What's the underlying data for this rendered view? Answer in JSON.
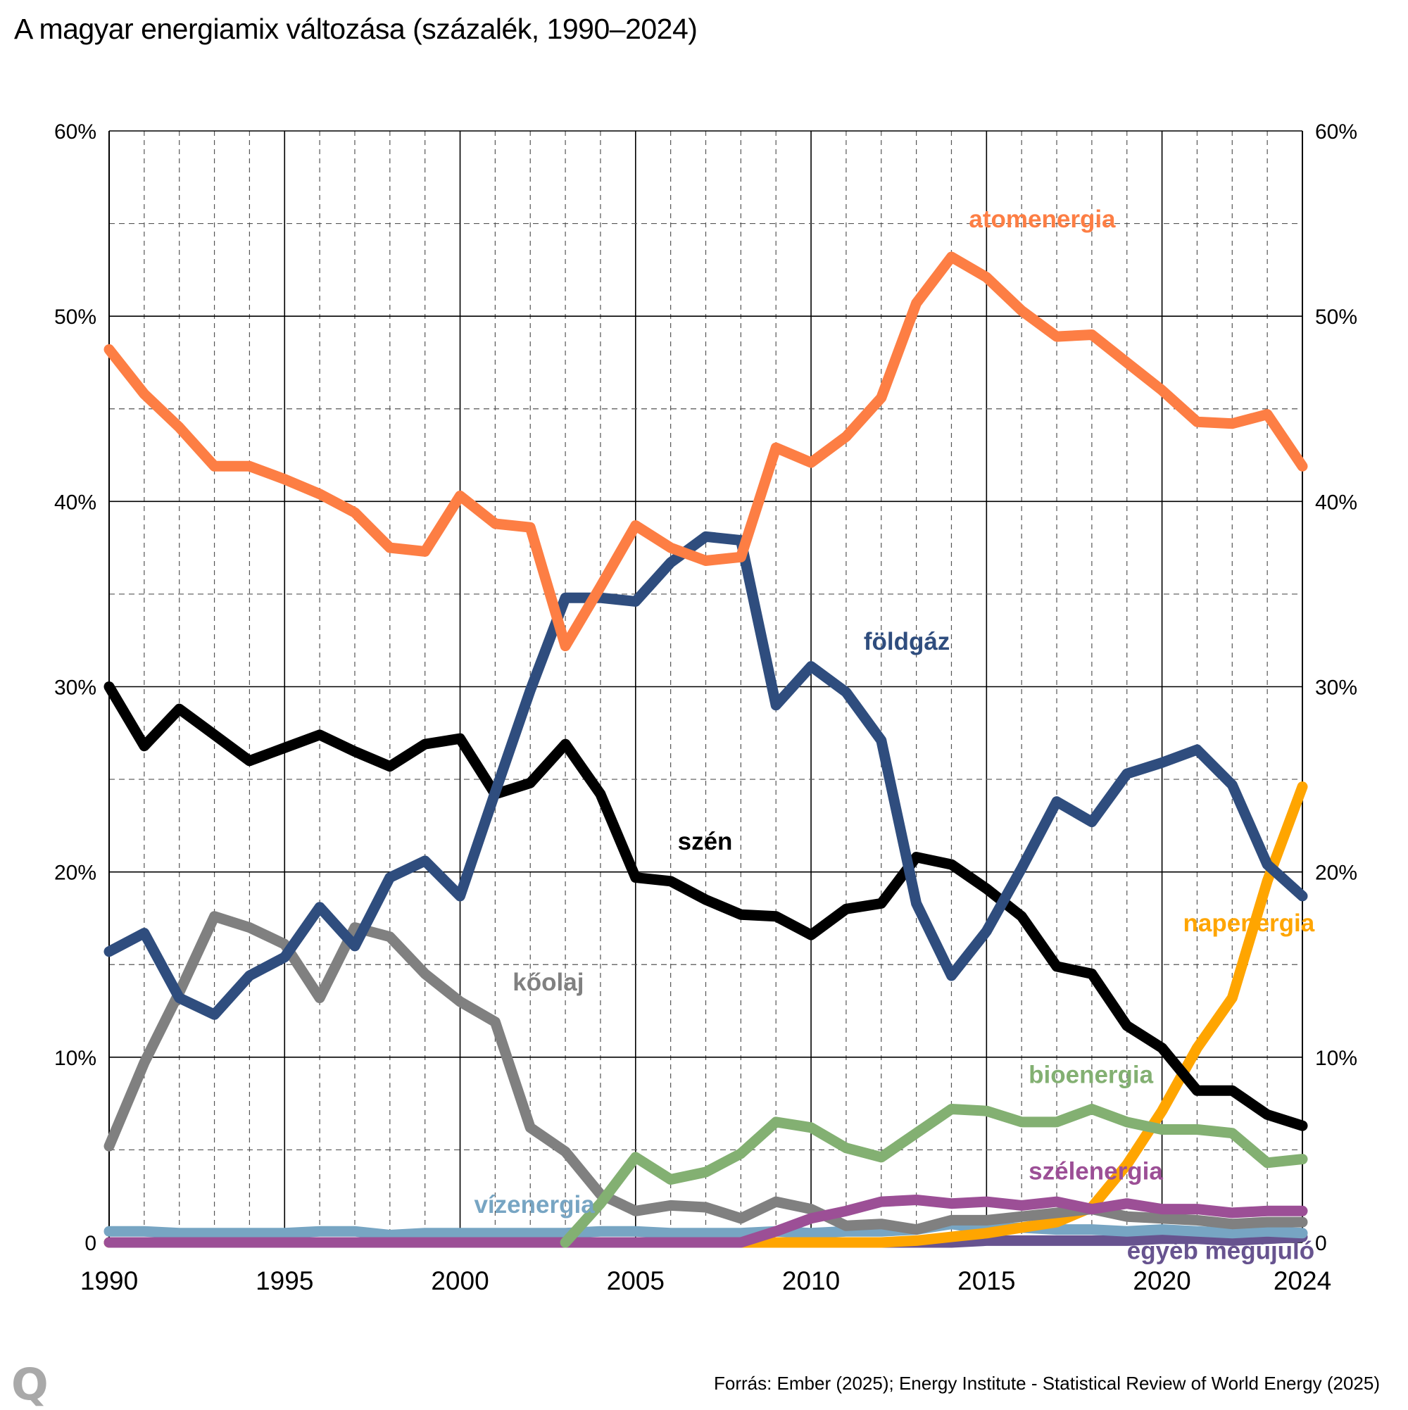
{
  "title": "A magyar energiamix változása (százalék, 1990–2024)",
  "source": "Forrás: Ember (2025); Energy Institute - Statistical Review of World Energy (2025)",
  "logo": "Q",
  "chart_data": {
    "type": "line",
    "title": "A magyar energiamix változása (százalék, 1990–2024)",
    "xlabel": "",
    "ylabel": "",
    "ylim": [
      0,
      60
    ],
    "xlim": [
      1990,
      2024
    ],
    "y_ticks": [
      0,
      10,
      20,
      30,
      40,
      50,
      60
    ],
    "y_tick_labels": [
      "0",
      "10%",
      "20%",
      "30%",
      "40%",
      "50%",
      "60%"
    ],
    "y_axis_sides": [
      "left",
      "right"
    ],
    "x_ticks": [
      1990,
      1995,
      2000,
      2005,
      2010,
      2015,
      2020,
      2024
    ],
    "x_tick_labels": [
      "1990",
      "1995",
      "2000",
      "2005",
      "2010",
      "2015",
      "2020",
      "2024"
    ],
    "grid": "major solid every 10%, minor dashed every 5% and every year",
    "legend": "inline labels",
    "x": [
      1990,
      1991,
      1992,
      1993,
      1994,
      1995,
      1996,
      1997,
      1998,
      1999,
      2000,
      2001,
      2002,
      2003,
      2004,
      2005,
      2006,
      2007,
      2008,
      2009,
      2010,
      2011,
      2012,
      2013,
      2014,
      2015,
      2016,
      2017,
      2018,
      2019,
      2020,
      2021,
      2022,
      2023,
      2024
    ],
    "series": [
      {
        "name": "egyéb megújuló",
        "color": "#67538f",
        "values": [
          0,
          0,
          0,
          0,
          0,
          0,
          0,
          0,
          0,
          0,
          0,
          0,
          0,
          0,
          0,
          0,
          0,
          0,
          0,
          0,
          0,
          0,
          0,
          0,
          0,
          0.1,
          0.1,
          0.1,
          0.1,
          0.1,
          0.2,
          0.2,
          0.1,
          0.2,
          0.3
        ]
      },
      {
        "name": "vízenergia",
        "color": "#77a5c3",
        "values": [
          0.6,
          0.6,
          0.5,
          0.5,
          0.5,
          0.5,
          0.6,
          0.6,
          0.4,
          0.5,
          0.5,
          0.5,
          0.5,
          0.5,
          0.6,
          0.6,
          0.5,
          0.5,
          0.5,
          0.6,
          0.5,
          0.6,
          0.6,
          0.7,
          1.0,
          0.7,
          0.8,
          0.7,
          0.7,
          0.6,
          0.7,
          0.6,
          0.5,
          0.6,
          0.5
        ]
      },
      {
        "name": "napenergia",
        "color": "#ffa500",
        "values": [
          0,
          0,
          0,
          0,
          0,
          0,
          0,
          0,
          0,
          0,
          0,
          0,
          0,
          0,
          0,
          0,
          0,
          0,
          0,
          0,
          0,
          0,
          0,
          0.1,
          0.3,
          0.5,
          0.8,
          1.1,
          1.9,
          4.2,
          7.1,
          10.5,
          13.2,
          19.5,
          24.6
        ]
      },
      {
        "name": "kőolaj",
        "color": "#808080",
        "values": [
          5.2,
          9.7,
          13.5,
          17.6,
          17.0,
          16.1,
          13.2,
          17.0,
          16.5,
          14.5,
          13.0,
          11.9,
          6.2,
          4.9,
          2.6,
          1.7,
          2.0,
          1.9,
          1.3,
          2.2,
          1.8,
          0.9,
          1.0,
          0.7,
          1.2,
          1.2,
          1.4,
          1.6,
          1.8,
          1.4,
          1.3,
          1.2,
          1.0,
          1.1,
          1.1
        ]
      },
      {
        "name": "szélenergia",
        "color": "#9c4f96",
        "values": [
          0,
          0,
          0,
          0,
          0,
          0,
          0,
          0,
          0,
          0,
          0,
          0,
          0,
          0,
          0,
          0,
          0,
          0,
          0,
          0.6,
          1.3,
          1.7,
          2.2,
          2.3,
          2.1,
          2.2,
          2.0,
          2.2,
          1.8,
          2.1,
          1.8,
          1.8,
          1.6,
          1.7,
          1.7
        ]
      },
      {
        "name": "bioenergia",
        "color": "#83b072",
        "values": [
          null,
          null,
          null,
          null,
          null,
          null,
          null,
          null,
          null,
          null,
          null,
          null,
          null,
          0,
          2.1,
          4.6,
          3.4,
          3.8,
          4.8,
          6.5,
          6.2,
          5.1,
          4.6,
          5.9,
          7.2,
          7.1,
          6.5,
          6.5,
          7.2,
          6.5,
          6.1,
          6.1,
          5.9,
          4.3,
          4.5
        ]
      },
      {
        "name": "szén",
        "color": "#000000",
        "values": [
          30.0,
          26.8,
          28.8,
          27.4,
          26.0,
          26.7,
          27.4,
          26.5,
          25.7,
          26.9,
          27.2,
          24.2,
          24.8,
          26.9,
          24.2,
          19.7,
          19.5,
          18.5,
          17.7,
          17.6,
          16.6,
          18.0,
          18.3,
          20.8,
          20.4,
          19.1,
          17.6,
          14.9,
          14.5,
          11.7,
          10.5,
          8.2,
          8.2,
          6.9,
          6.3
        ]
      },
      {
        "name": "földgáz",
        "color": "#2f4d7e",
        "values": [
          15.7,
          16.7,
          13.2,
          12.3,
          14.4,
          15.4,
          18.1,
          16.0,
          19.7,
          20.6,
          18.7,
          24.3,
          29.8,
          34.8,
          34.8,
          34.6,
          36.7,
          38.1,
          37.9,
          29.0,
          31.1,
          29.7,
          27.1,
          18.3,
          14.4,
          16.8,
          20.2,
          23.8,
          22.7,
          25.3,
          25.9,
          26.6,
          24.7,
          20.4,
          18.7
        ]
      },
      {
        "name": "atomenergia",
        "color": "#fd7e44",
        "values": [
          48.2,
          45.8,
          44.0,
          41.9,
          41.9,
          41.2,
          40.4,
          39.4,
          37.5,
          37.3,
          40.3,
          38.8,
          38.6,
          32.2,
          35.4,
          38.7,
          37.5,
          36.8,
          37.0,
          42.9,
          42.1,
          43.5,
          45.6,
          50.7,
          53.2,
          52.1,
          50.3,
          48.9,
          49.0,
          47.5,
          46.0,
          44.3,
          44.2,
          44.7,
          41.9
        ]
      }
    ],
    "annotations": [
      {
        "text": "atomenergia",
        "series": "atomenergia",
        "x": 2014.5,
        "y": 54.8
      },
      {
        "text": "földgáz",
        "series": "földgáz",
        "x": 2011.5,
        "y": 32.0
      },
      {
        "text": "szén",
        "series": "szén",
        "x": 2006.2,
        "y": 21.2
      },
      {
        "text": "kőolaj",
        "series": "kőolaj",
        "x": 2001.5,
        "y": 13.6
      },
      {
        "text": "napenergia",
        "series": "napenergia",
        "x": 2020.6,
        "y": 16.8
      },
      {
        "text": "bioenergia",
        "series": "bioenergia",
        "x": 2016.2,
        "y": 8.6
      },
      {
        "text": "szélenergia",
        "series": "szélenergia",
        "x": 2016.2,
        "y": 3.4
      },
      {
        "text": "vízenergia",
        "series": "vízenergia",
        "x": 2000.4,
        "y": 1.6
      },
      {
        "text": "egyéb megújuló",
        "series": "egyéb megújuló",
        "x": 2019.0,
        "y": -0.9
      }
    ]
  }
}
